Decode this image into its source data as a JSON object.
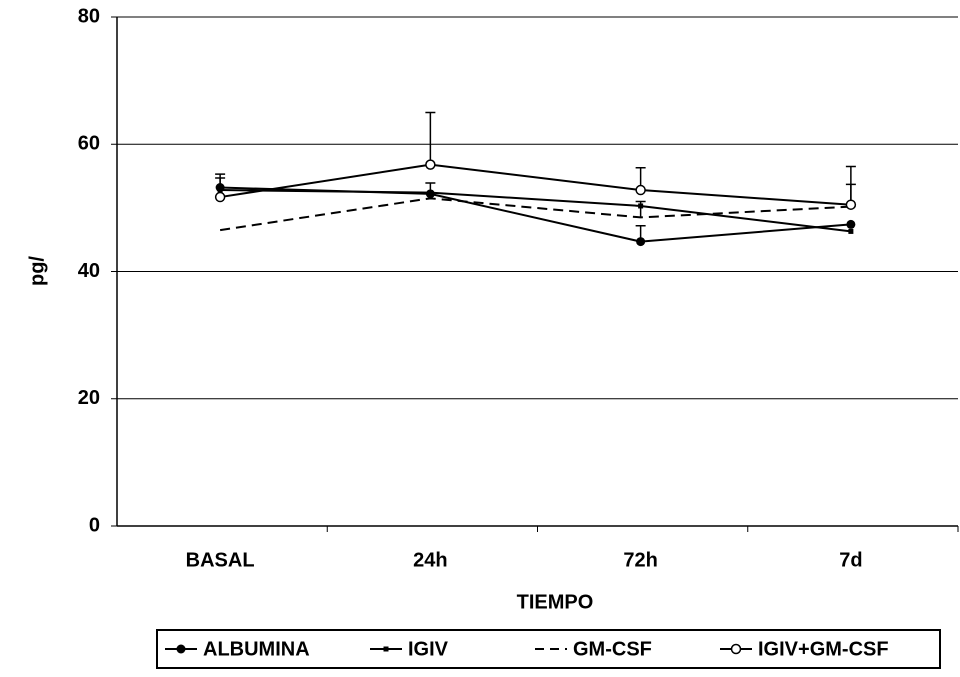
{
  "chart_data": {
    "type": "line",
    "xlabel": "TIEMPO",
    "ylabel": "pg/",
    "categories": [
      "BASAL",
      "24h",
      "72h",
      "7d"
    ],
    "ylim": [
      0,
      80
    ],
    "yticks": [
      0,
      20,
      40,
      60,
      80
    ],
    "grid": true,
    "legend": "bottom",
    "series": [
      {
        "name": "ALBUMINA",
        "color": "#000000",
        "marker": "filled-circle",
        "dash": false,
        "values": [
          53.2,
          52.2,
          44.7,
          47.4
        ],
        "errors": [
          1.5,
          null,
          2.5,
          null
        ]
      },
      {
        "name": "IGIV",
        "color": "#000000",
        "marker": "square",
        "dash": false,
        "values": [
          52.8,
          52.4,
          50.3,
          46.3
        ],
        "errors": [
          2.5,
          1.5,
          null,
          null
        ]
      },
      {
        "name": "GM-CSF",
        "color": "#000000",
        "marker": "none",
        "dash": true,
        "values": [
          46.5,
          51.5,
          48.5,
          50.2
        ],
        "errors": [
          null,
          null,
          2.5,
          3.5
        ]
      },
      {
        "name": "IGIV+GM-CSF",
        "color": "#000000",
        "marker": "open-circle",
        "dash": false,
        "values": [
          51.7,
          56.8,
          52.8,
          50.5
        ],
        "errors": [
          null,
          8.2,
          3.5,
          6
        ]
      }
    ]
  }
}
